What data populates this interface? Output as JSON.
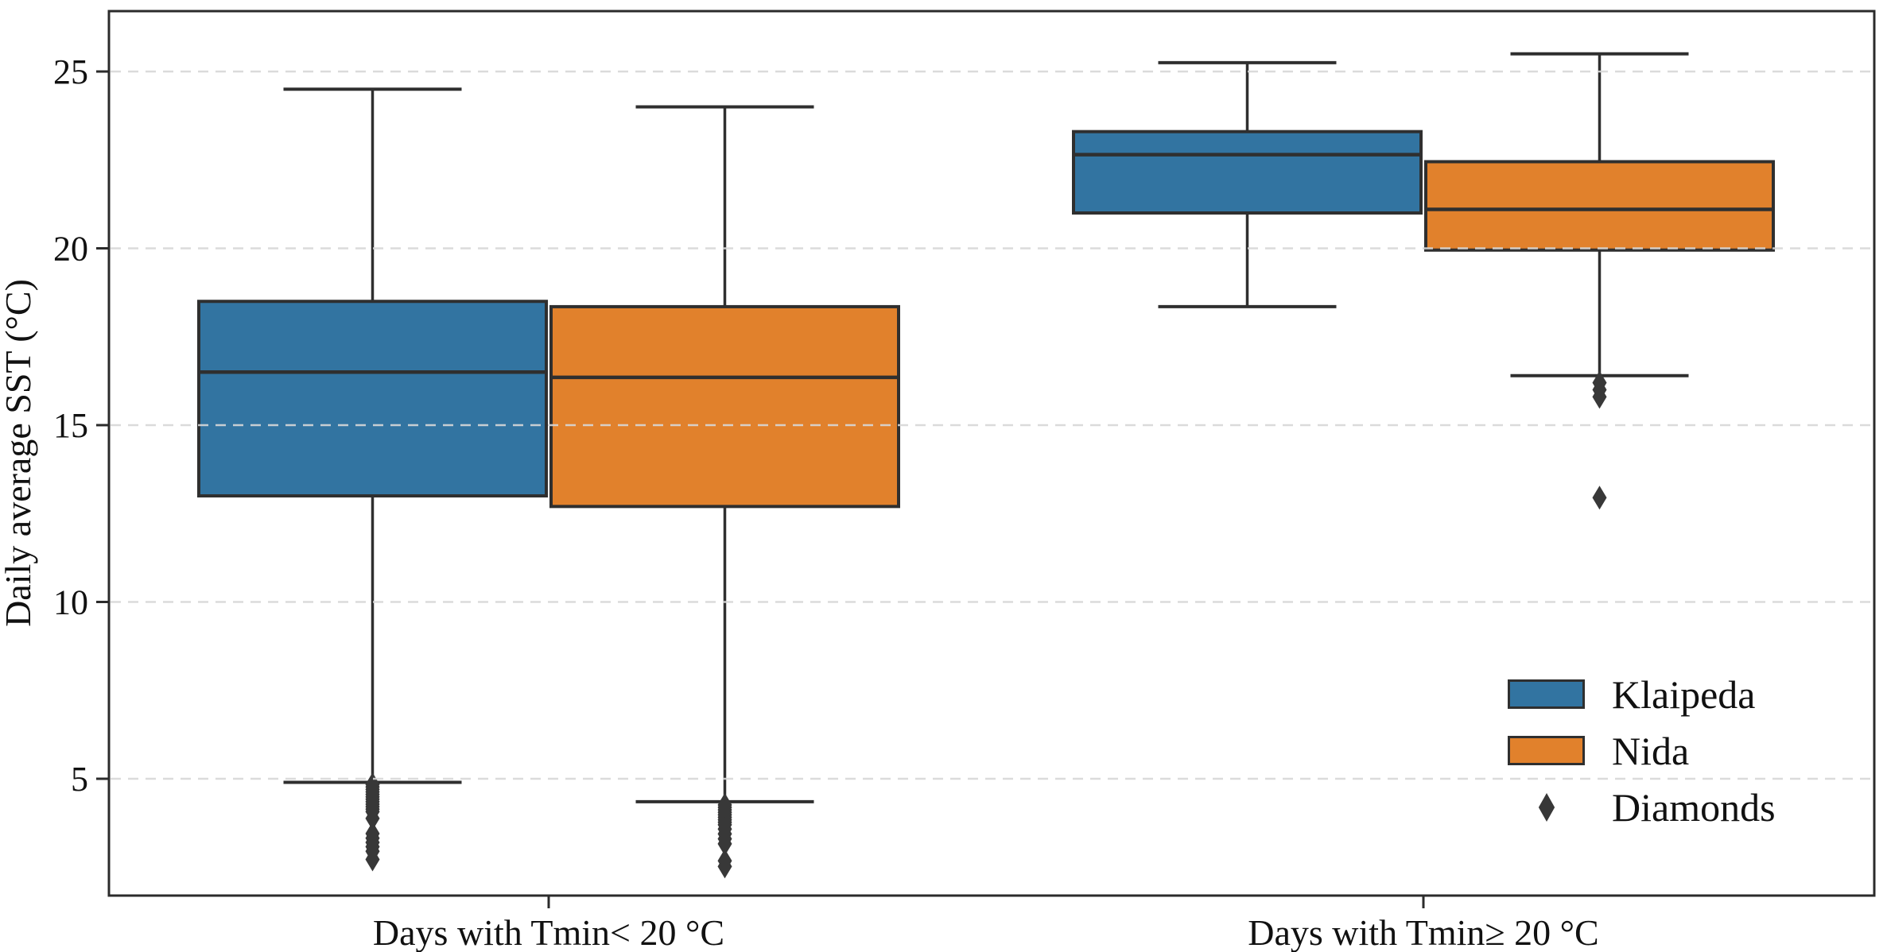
{
  "chart_data": {
    "type": "box",
    "title": "",
    "xlabel": "",
    "ylabel": "Daily average SST (°C)",
    "categories": [
      "Days with Tmin< 20 °C",
      "Days with Tmin≥ 20 °C"
    ],
    "yticks": [
      5,
      10,
      15,
      20,
      25
    ],
    "ylim": [
      1.7,
      26.7
    ],
    "grid": "horizontal-dashed",
    "legend_position": "lower-right",
    "outlier_marker": "thin-diamond",
    "series": [
      {
        "name": "Klaipeda",
        "color": "#3274A1",
        "boxes": [
          {
            "category": "Days with Tmin< 20 °C",
            "whisker_low": 4.9,
            "q1": 13.0,
            "median": 16.5,
            "q3": 18.5,
            "whisker_high": 24.5,
            "outliers": [
              4.84,
              4.77,
              4.7,
              4.63,
              4.56,
              4.49,
              4.42,
              4.35,
              4.28,
              4.21,
              4.14,
              4.07,
              3.88,
              3.45,
              3.32,
              3.2,
              3.08,
              2.95,
              2.72
            ]
          },
          {
            "category": "Days with Tmin≥ 20 °C",
            "whisker_low": 18.35,
            "q1": 21.0,
            "median": 22.65,
            "q3": 23.3,
            "whisker_high": 25.25,
            "outliers": []
          }
        ]
      },
      {
        "name": "Nida",
        "color": "#E1812C",
        "boxes": [
          {
            "category": "Days with Tmin< 20 °C",
            "whisker_low": 4.35,
            "q1": 12.7,
            "median": 16.35,
            "q3": 18.35,
            "whisker_high": 24.0,
            "outliers": [
              4.26,
              4.19,
              4.12,
              4.05,
              3.98,
              3.91,
              3.84,
              3.77,
              3.7,
              3.58,
              3.44,
              3.3,
              3.16,
              2.68,
              2.52
            ]
          },
          {
            "category": "Days with Tmin≥ 20 °C",
            "whisker_low": 16.4,
            "q1": 19.95,
            "median": 21.1,
            "q3": 22.45,
            "whisker_high": 25.5,
            "outliers": [
              16.2,
              16.0,
              15.8,
              12.95
            ]
          }
        ]
      }
    ]
  },
  "legend": {
    "items": [
      {
        "label": "Klaipeda",
        "marker": "box"
      },
      {
        "label": "Nida",
        "marker": "box"
      },
      {
        "label": "Diamonds",
        "marker": "diamond"
      }
    ]
  },
  "colors": {
    "klaipeda": "#3274A1",
    "nida": "#E1812C",
    "box_edge": "#2f2f2f",
    "diamond": "#383838",
    "grid": "#d8d8d8",
    "spine": "#2b2b2b",
    "text": "#111111"
  }
}
